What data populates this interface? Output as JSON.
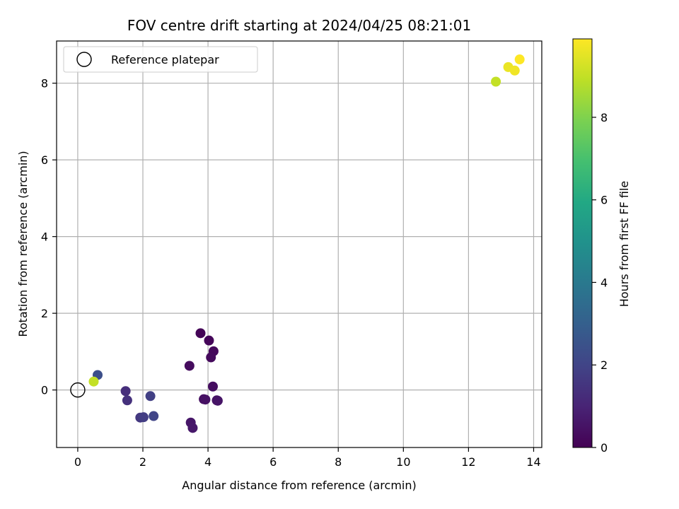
{
  "chart_data": {
    "type": "scatter",
    "title": "FOV centre drift starting at 2024/04/25 08:21:01",
    "xlabel": "Angular distance from reference (arcmin)",
    "ylabel": "Rotation from reference (arcmin)",
    "xlim": [
      -0.65,
      14.25
    ],
    "ylim": [
      -1.5,
      9.1
    ],
    "xticks": [
      0,
      2,
      4,
      6,
      8,
      10,
      12,
      14
    ],
    "yticks": [
      0,
      2,
      4,
      6,
      8
    ],
    "grid": true,
    "legend": {
      "placement": "top-left",
      "entries": [
        {
          "label": "Reference platepar",
          "marker": "open-circle"
        }
      ]
    },
    "reference_point": {
      "x": 0,
      "y": 0
    },
    "colorbar": {
      "label": "Hours from first FF file",
      "colormap": "viridis",
      "range": [
        0,
        9.9
      ],
      "ticks": [
        0,
        2,
        4,
        6,
        8
      ]
    },
    "points": [
      {
        "x": 3.77,
        "y": 1.48,
        "t": 0.1
      },
      {
        "x": 4.03,
        "y": 1.29,
        "t": 0.15
      },
      {
        "x": 4.17,
        "y": 1.01,
        "t": 0.2
      },
      {
        "x": 4.09,
        "y": 0.85,
        "t": 0.25
      },
      {
        "x": 3.43,
        "y": 0.63,
        "t": 0.3
      },
      {
        "x": 4.15,
        "y": 0.09,
        "t": 0.35
      },
      {
        "x": 3.87,
        "y": -0.24,
        "t": 0.4
      },
      {
        "x": 3.92,
        "y": -0.25,
        "t": 0.45
      },
      {
        "x": 4.27,
        "y": -0.27,
        "t": 0.5
      },
      {
        "x": 4.3,
        "y": -0.28,
        "t": 0.55
      },
      {
        "x": 3.47,
        "y": -0.85,
        "t": 0.6
      },
      {
        "x": 3.53,
        "y": -0.99,
        "t": 0.65
      },
      {
        "x": 1.47,
        "y": -0.03,
        "t": 1.3
      },
      {
        "x": 1.52,
        "y": -0.27,
        "t": 1.4
      },
      {
        "x": 1.92,
        "y": -0.72,
        "t": 1.6
      },
      {
        "x": 2.02,
        "y": -0.71,
        "t": 1.75
      },
      {
        "x": 2.23,
        "y": -0.16,
        "t": 1.85
      },
      {
        "x": 2.33,
        "y": -0.68,
        "t": 2.0
      },
      {
        "x": 0.61,
        "y": 0.39,
        "t": 2.4
      },
      {
        "x": 0.49,
        "y": 0.22,
        "t": 9.0
      },
      {
        "x": 12.84,
        "y": 8.04,
        "t": 9.0
      },
      {
        "x": 13.22,
        "y": 8.42,
        "t": 9.6
      },
      {
        "x": 13.42,
        "y": 8.33,
        "t": 9.7
      },
      {
        "x": 13.57,
        "y": 8.62,
        "t": 9.9
      }
    ]
  }
}
